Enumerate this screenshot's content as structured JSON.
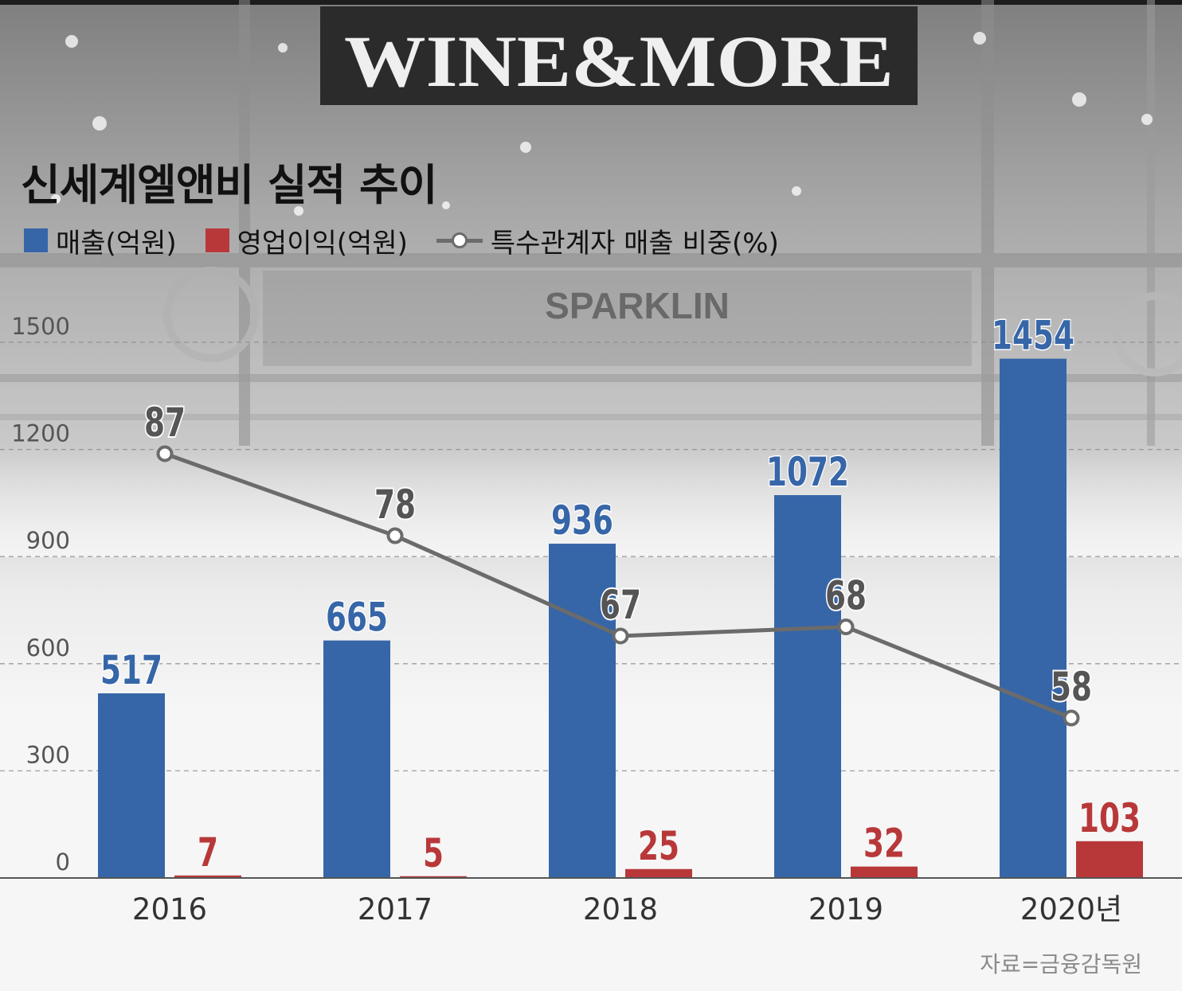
{
  "background": {
    "sign_text": "WINE&MORE",
    "shelf_sign_text": "SPARKLIN"
  },
  "title": "신세계엘앤비 실적 추이",
  "legend": [
    {
      "label": "매출(억원)",
      "color": "#3666a8",
      "kind": "bar"
    },
    {
      "label": "영업이익(억원)",
      "color": "#b8383a",
      "kind": "bar"
    },
    {
      "label": "특수관계자 매출 비중(%)",
      "color": "#6b6b6b",
      "kind": "line"
    }
  ],
  "source": "자료=금융감독원",
  "chart_data": {
    "type": "bar",
    "categories": [
      "2016",
      "2017",
      "2018",
      "2019",
      "2020년"
    ],
    "ylim": [
      0,
      1500
    ],
    "yticks": [
      "0",
      "300",
      "600",
      "900",
      "1200",
      "1500"
    ],
    "grid": true,
    "legend_position": "top-left",
    "series": [
      {
        "name": "매출(억원)",
        "type": "bar",
        "color": "#3666a8",
        "values": [
          517,
          665,
          936,
          1072,
          1454
        ]
      },
      {
        "name": "영업이익(억원)",
        "type": "bar",
        "color": "#b8383a",
        "values": [
          7,
          5,
          25,
          32,
          103
        ]
      },
      {
        "name": "특수관계자 매출 비중(%)",
        "type": "line",
        "color": "#6b6b6b",
        "values": [
          87,
          78,
          67,
          68,
          58
        ]
      }
    ]
  }
}
